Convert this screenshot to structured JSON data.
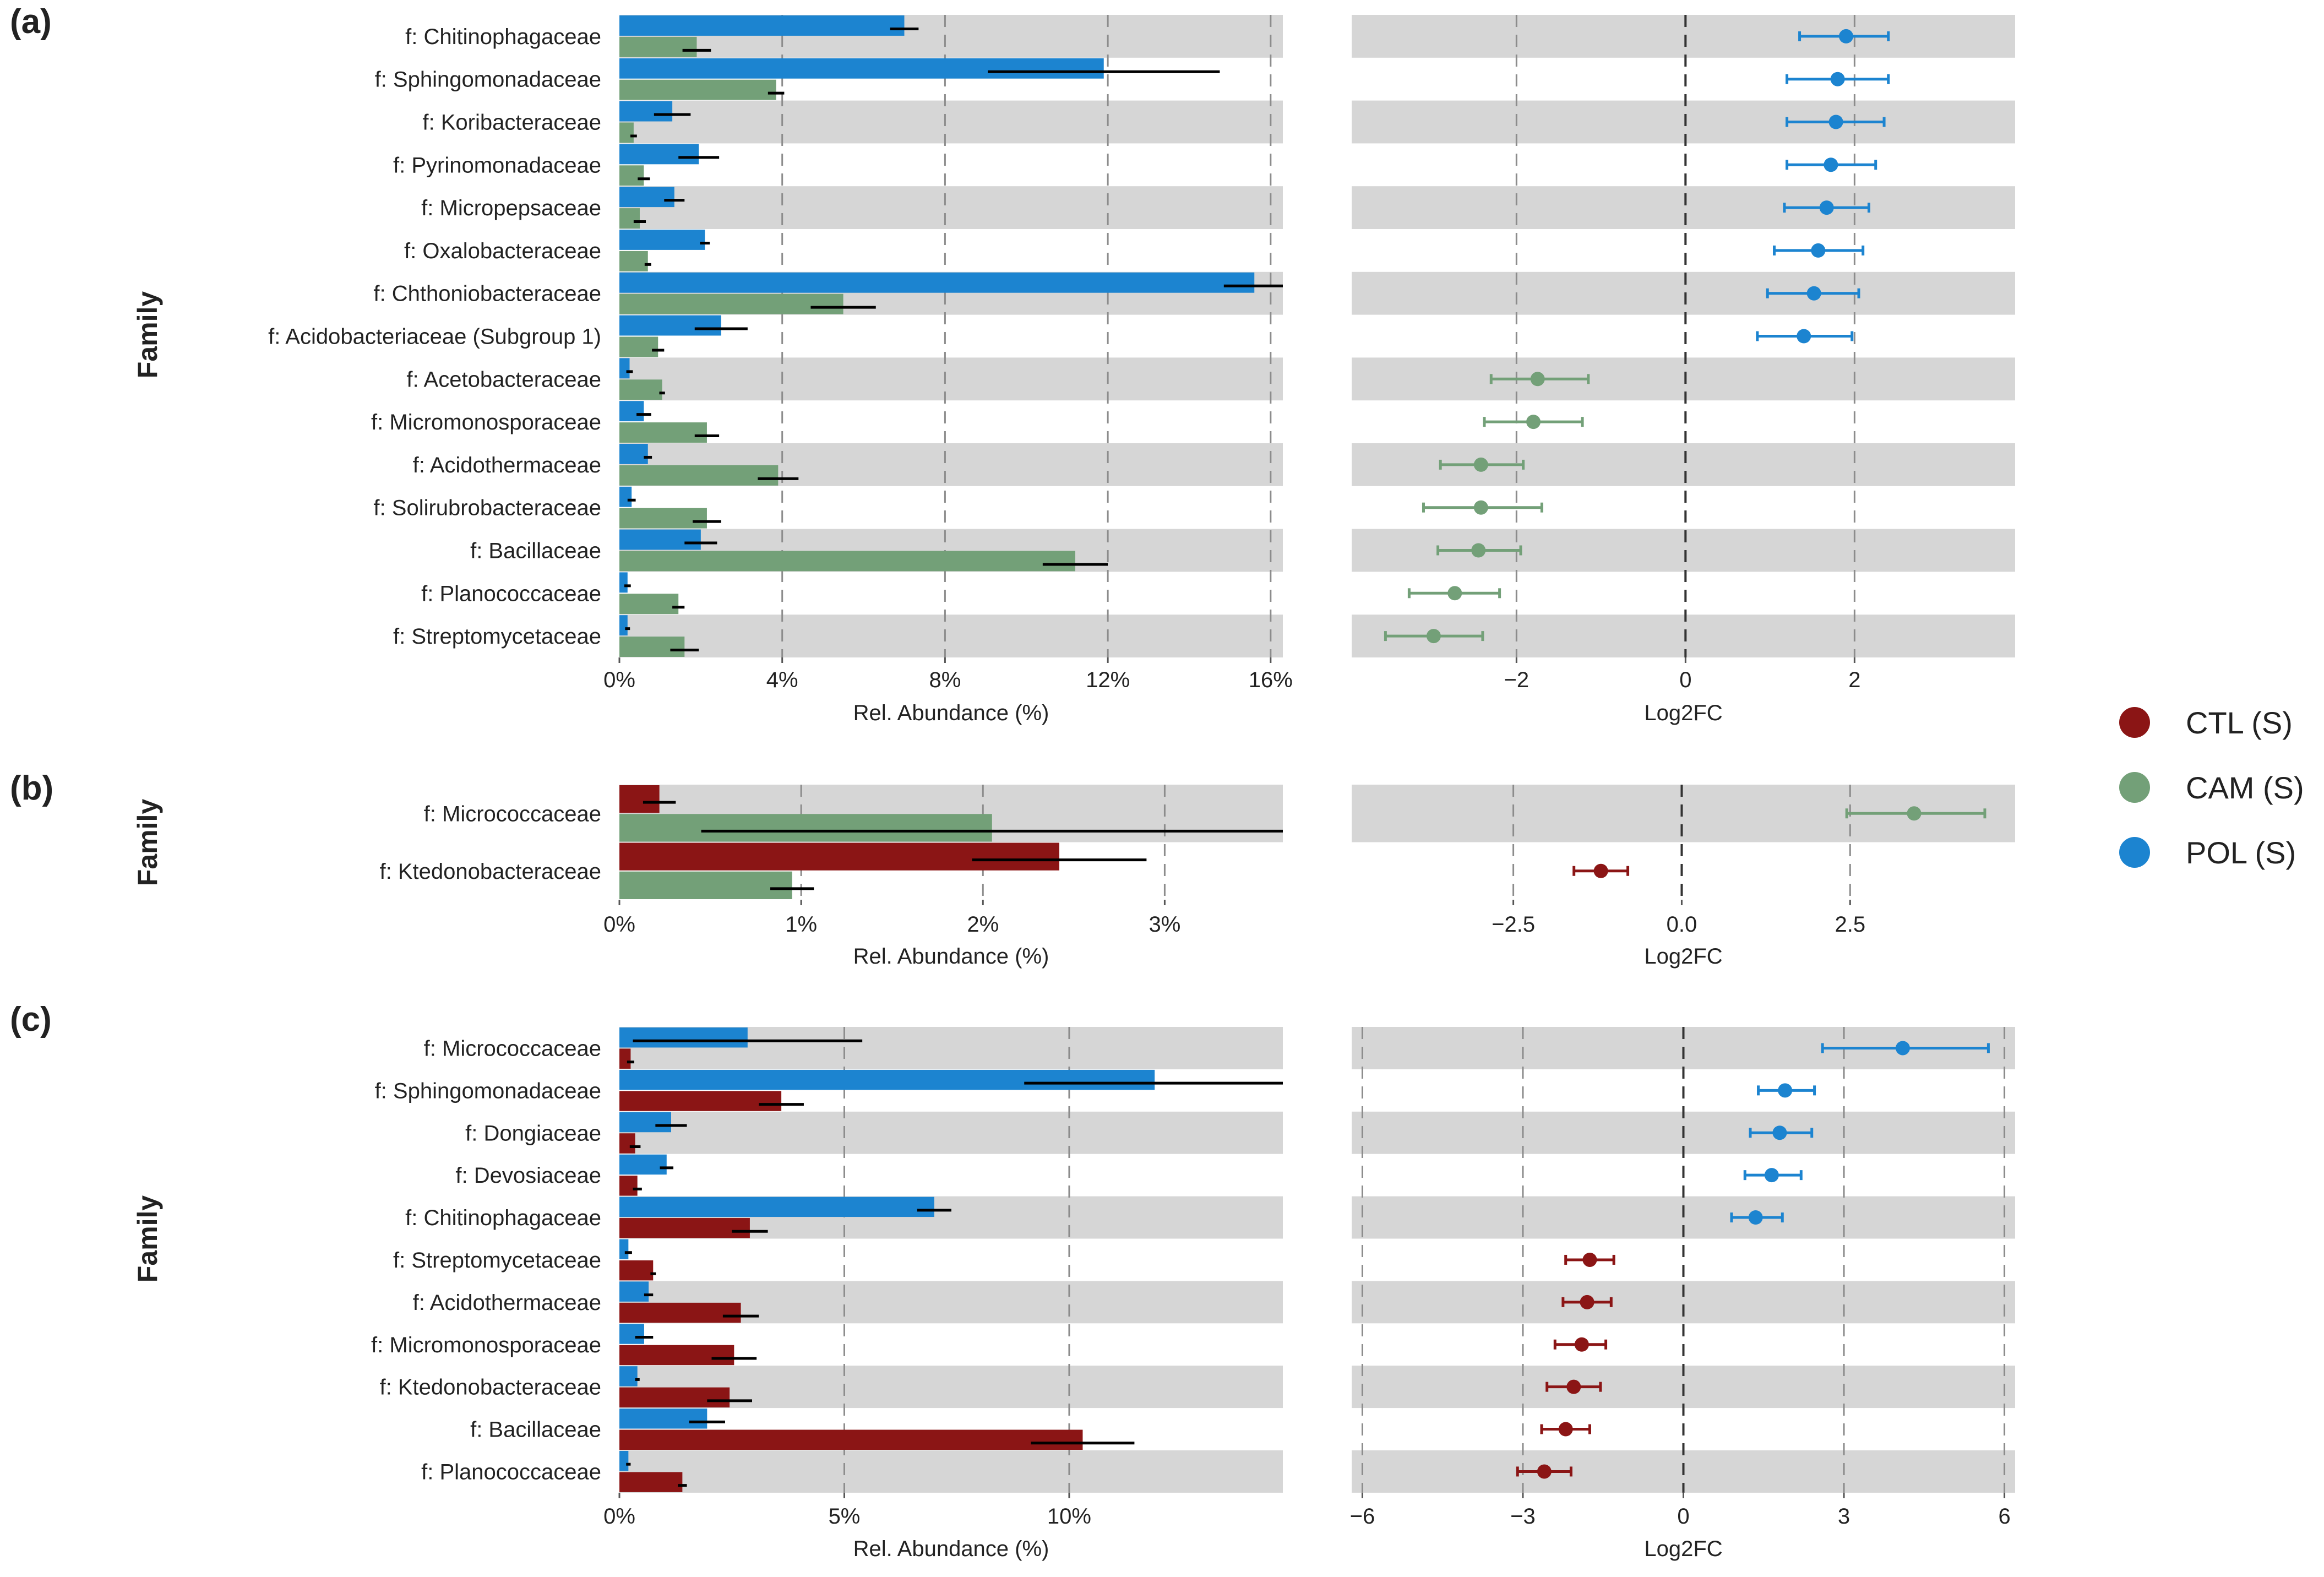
{
  "legend": [
    {
      "label": "CTL (S)",
      "color": "#8b1515"
    },
    {
      "label": "CAM (S)",
      "color": "#73a078"
    },
    {
      "label": "POL (S)",
      "color": "#1c84d0"
    }
  ],
  "chart_data": [
    {
      "panel": "(a)",
      "type": "bar",
      "orientation": "horizontal",
      "ylabel": "Family",
      "xlabel": "Rel. Abundance (%)",
      "xticks": [
        "0%",
        "4%",
        "8%",
        "12%",
        "16%"
      ],
      "xlim": [
        0,
        16.3
      ],
      "categories": [
        "f: Chitinophagaceae",
        "f: Sphingomonadaceae",
        "f: Koribacteraceae",
        "f: Pyrinomonadaceae",
        "f: Micropepsaceae",
        "f: Oxalobacteraceae",
        "f: Chthoniobacteraceae",
        "f: Acidobacteriaceae (Subgroup 1)",
        "f: Acetobacteraceae",
        "f: Micromonosporaceae",
        "f: Acidothermaceae",
        "f: Solirubrobacteraceae",
        "f: Bacillaceae",
        "f: Planococcaceae",
        "f: Streptomycetaceae"
      ],
      "series": [
        {
          "name": "POL (S)",
          "color": "#1c84d0",
          "values": [
            7.0,
            11.9,
            1.3,
            1.95,
            1.35,
            2.1,
            15.6,
            2.5,
            0.25,
            0.6,
            0.7,
            0.3,
            2.0,
            0.2,
            0.2
          ],
          "errors": [
            0.35,
            2.85,
            0.45,
            0.5,
            0.25,
            0.12,
            0.75,
            0.65,
            0.08,
            0.18,
            0.1,
            0.1,
            0.4,
            0.08,
            0.06
          ]
        },
        {
          "name": "CAM (S)",
          "color": "#73a078",
          "values": [
            1.9,
            3.85,
            0.35,
            0.6,
            0.5,
            0.7,
            5.5,
            0.95,
            1.05,
            2.15,
            3.9,
            2.15,
            11.2,
            1.45,
            1.6
          ],
          "errors": [
            0.35,
            0.2,
            0.08,
            0.15,
            0.15,
            0.08,
            0.8,
            0.15,
            0.07,
            0.3,
            0.5,
            0.35,
            0.8,
            0.15,
            0.35
          ]
        }
      ],
      "lfc": {
        "xlabel": "Log2FC",
        "xticks": [
          -2,
          0,
          2
        ],
        "xlim": [
          -3.95,
          3.9
        ],
        "points": [
          {
            "value": 1.9,
            "low": 1.35,
            "high": 2.4,
            "color": "#1c84d0"
          },
          {
            "value": 1.8,
            "low": 1.2,
            "high": 2.4,
            "color": "#1c84d0"
          },
          {
            "value": 1.78,
            "low": 1.2,
            "high": 2.35,
            "color": "#1c84d0"
          },
          {
            "value": 1.72,
            "low": 1.2,
            "high": 2.25,
            "color": "#1c84d0"
          },
          {
            "value": 1.67,
            "low": 1.17,
            "high": 2.17,
            "color": "#1c84d0"
          },
          {
            "value": 1.57,
            "low": 1.05,
            "high": 2.1,
            "color": "#1c84d0"
          },
          {
            "value": 1.52,
            "low": 0.97,
            "high": 2.05,
            "color": "#1c84d0"
          },
          {
            "value": 1.4,
            "low": 0.85,
            "high": 1.97,
            "color": "#1c84d0"
          },
          {
            "value": -1.75,
            "low": -2.3,
            "high": -1.15,
            "color": "#73a078"
          },
          {
            "value": -1.8,
            "low": -2.38,
            "high": -1.22,
            "color": "#73a078"
          },
          {
            "value": -2.42,
            "low": -2.9,
            "high": -1.92,
            "color": "#73a078"
          },
          {
            "value": -2.42,
            "low": -3.1,
            "high": -1.7,
            "color": "#73a078"
          },
          {
            "value": -2.45,
            "low": -2.93,
            "high": -1.95,
            "color": "#73a078"
          },
          {
            "value": -2.73,
            "low": -3.27,
            "high": -2.2,
            "color": "#73a078"
          },
          {
            "value": -2.98,
            "low": -3.55,
            "high": -2.4,
            "color": "#73a078"
          }
        ]
      }
    },
    {
      "panel": "(b)",
      "type": "bar",
      "orientation": "horizontal",
      "ylabel": "Family",
      "xlabel": "Rel. Abundance (%)",
      "xticks": [
        "0%",
        "1%",
        "2%",
        "3%"
      ],
      "xlim": [
        0,
        3.65
      ],
      "categories": [
        "f: Micrococcaceae",
        "f: Ktedonobacteraceae"
      ],
      "series": [
        {
          "name": "CTL (S)",
          "color": "#8b1515",
          "values": [
            0.22,
            2.42
          ],
          "errors": [
            0.09,
            0.48
          ]
        },
        {
          "name": "CAM (S)",
          "color": "#73a078",
          "values": [
            2.05,
            0.95
          ],
          "errors": [
            1.6,
            0.12
          ]
        }
      ],
      "lfc": {
        "xlabel": "Log2FC",
        "xticks": [
          -2.5,
          0.0,
          2.5
        ],
        "tick_labels": [
          "−2.5",
          "0.0",
          "2.5"
        ],
        "xlim": [
          -4.9,
          4.95
        ],
        "points": [
          {
            "value": 3.45,
            "low": 2.45,
            "high": 4.5,
            "color": "#73a078"
          },
          {
            "value": -1.2,
            "low": -1.6,
            "high": -0.8,
            "color": "#8b1515"
          }
        ]
      }
    },
    {
      "panel": "(c)",
      "type": "bar",
      "orientation": "horizontal",
      "ylabel": "Family",
      "xlabel": "Rel. Abundance (%)",
      "xticks": [
        "0%",
        "5%",
        "10%"
      ],
      "xlim": [
        0,
        14.75
      ],
      "categories": [
        "f: Micrococcaceae",
        "f: Sphingomonadaceae",
        "f: Dongiaceae",
        "f: Devosiaceae",
        "f: Chitinophagaceae",
        "f: Streptomycetaceae",
        "f: Acidothermaceae",
        "f: Micromonosporaceae",
        "f: Ktedonobacteraceae",
        "f: Bacillaceae",
        "f: Planococcaceae"
      ],
      "series": [
        {
          "name": "POL (S)",
          "color": "#1c84d0",
          "values": [
            2.85,
            11.9,
            1.15,
            1.05,
            7.0,
            0.2,
            0.65,
            0.55,
            0.4,
            1.95,
            0.2
          ],
          "errors": [
            2.55,
            2.9,
            0.35,
            0.15,
            0.38,
            0.08,
            0.1,
            0.2,
            0.05,
            0.4,
            0.05
          ]
        },
        {
          "name": "CTL (S)",
          "color": "#8b1515",
          "values": [
            0.25,
            3.6,
            0.35,
            0.4,
            2.9,
            0.75,
            2.7,
            2.55,
            2.45,
            10.3,
            1.4
          ],
          "errors": [
            0.08,
            0.5,
            0.12,
            0.1,
            0.4,
            0.06,
            0.4,
            0.5,
            0.5,
            1.15,
            0.1
          ]
        }
      ],
      "lfc": {
        "xlabel": "Log2FC",
        "xticks": [
          -6,
          -3,
          0,
          3,
          6
        ],
        "tick_labels": [
          "−6",
          "−3",
          "0",
          "3",
          "6"
        ],
        "xlim": [
          -6.2,
          6.2
        ],
        "points": [
          {
            "value": 4.1,
            "low": 2.6,
            "high": 5.7,
            "color": "#1c84d0"
          },
          {
            "value": 1.9,
            "low": 1.4,
            "high": 2.45,
            "color": "#1c84d0"
          },
          {
            "value": 1.8,
            "low": 1.25,
            "high": 2.4,
            "color": "#1c84d0"
          },
          {
            "value": 1.65,
            "low": 1.15,
            "high": 2.2,
            "color": "#1c84d0"
          },
          {
            "value": 1.35,
            "low": 0.9,
            "high": 1.85,
            "color": "#1c84d0"
          },
          {
            "value": -1.75,
            "low": -2.2,
            "high": -1.3,
            "color": "#8b1515"
          },
          {
            "value": -1.8,
            "low": -2.25,
            "high": -1.35,
            "color": "#8b1515"
          },
          {
            "value": -1.9,
            "low": -2.4,
            "high": -1.45,
            "color": "#8b1515"
          },
          {
            "value": -2.05,
            "low": -2.55,
            "high": -1.55,
            "color": "#8b1515"
          },
          {
            "value": -2.2,
            "low": -2.65,
            "high": -1.75,
            "color": "#8b1515"
          },
          {
            "value": -2.6,
            "low": -3.1,
            "high": -2.1,
            "color": "#8b1515"
          }
        ]
      }
    }
  ]
}
